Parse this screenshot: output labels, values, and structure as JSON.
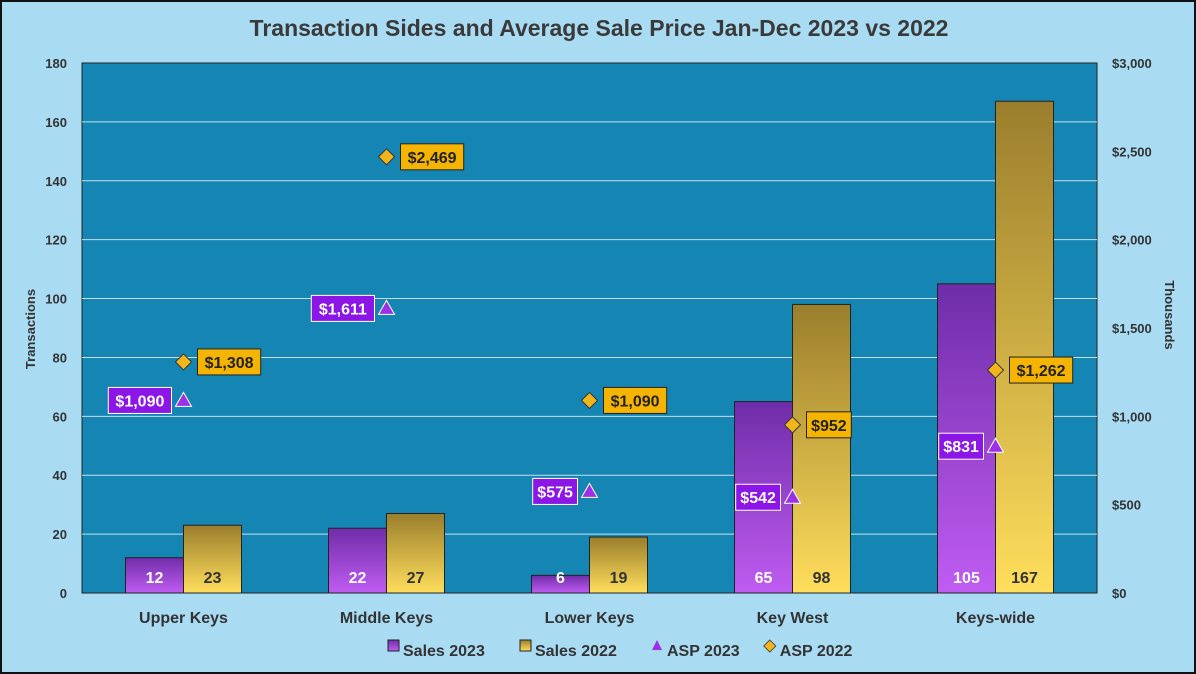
{
  "chart_data": {
    "type": "bar",
    "title": "Transaction Sides and Average Sale Price Jan-Dec 2023 vs 2022",
    "ylabel": "Transactions",
    "y2label": "Thousands",
    "ylim": [
      0,
      180
    ],
    "y2lim": [
      0,
      3000
    ],
    "yticks": [
      "0",
      "20",
      "40",
      "60",
      "80",
      "100",
      "120",
      "140",
      "160",
      "180"
    ],
    "y2ticks": [
      "$0",
      "$500",
      "$1,000",
      "$1,500",
      "$2,000",
      "$2,500",
      "$3,000"
    ],
    "categories": [
      "Upper Keys",
      "Middle Keys",
      "Lower Keys",
      "Key West",
      "Keys-wide"
    ],
    "series": [
      {
        "name": "Sales 2023",
        "type": "bar",
        "axis": "left",
        "values": [
          12,
          22,
          6,
          65,
          105
        ],
        "labels": [
          "12",
          "22",
          "6",
          "65",
          "105"
        ]
      },
      {
        "name": "Sales 2022",
        "type": "bar",
        "axis": "left",
        "values": [
          23,
          27,
          19,
          98,
          167
        ],
        "labels": [
          "23",
          "27",
          "19",
          "98",
          "167"
        ]
      },
      {
        "name": "ASP 2023",
        "type": "marker",
        "marker": "triangle",
        "axis": "right",
        "values": [
          1090,
          1611,
          575,
          542,
          831
        ],
        "labels": [
          "$1,090",
          "$1,611",
          "$575",
          "$542",
          "$831"
        ]
      },
      {
        "name": "ASP 2022",
        "type": "marker",
        "marker": "diamond",
        "axis": "right",
        "values": [
          1308,
          2469,
          1090,
          952,
          1262
        ],
        "labels": [
          "$1,308",
          "$2,469",
          "$1,090",
          "$952",
          "$1,262"
        ]
      }
    ],
    "grid": true,
    "legend_position": "bottom"
  },
  "colors": {
    "plot_bg": "#1585b3",
    "purple_top": "#6f2da8",
    "purple_bottom": "#c05cf2",
    "gold_top": "#9a7e2c",
    "gold_bottom": "#ffde5c",
    "asp2023_marker": "#9b30e8",
    "asp2022_marker": "#f2b51a",
    "asp2023_label_bg": "#8b16e6",
    "asp2022_label_bg": "#f5b400"
  },
  "icons": {
    "asp2023": "triangle-marker",
    "asp2022": "diamond-marker"
  }
}
